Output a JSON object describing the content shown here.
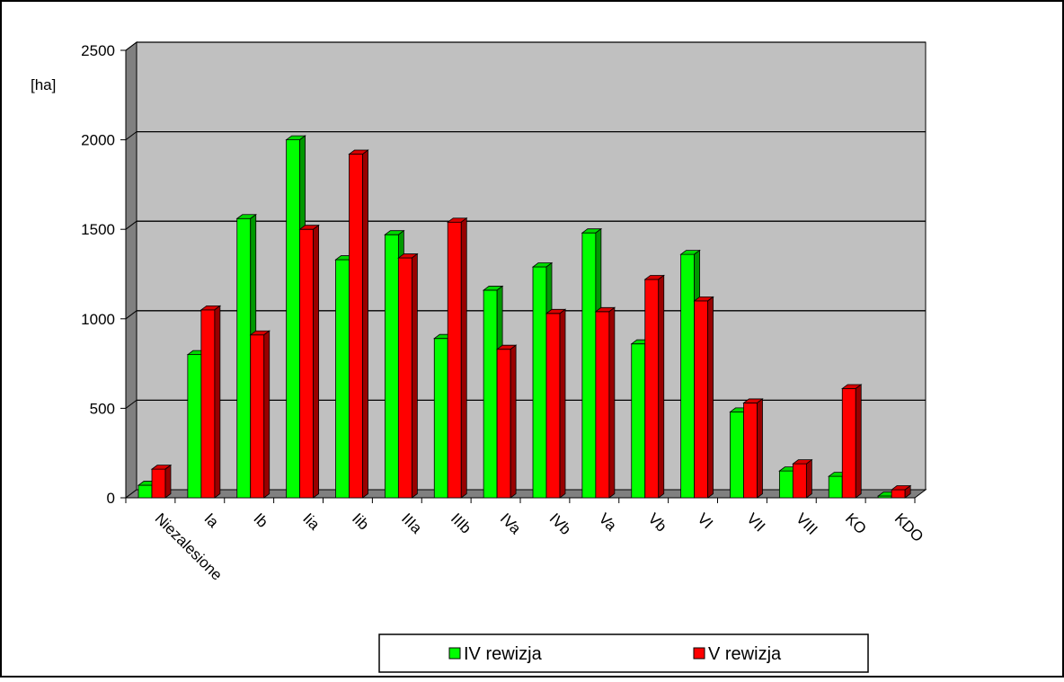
{
  "chart_data": {
    "type": "bar",
    "title": "",
    "xlabel": "",
    "ylabel": "[ha]",
    "ylim": [
      0,
      2500
    ],
    "yticks": [
      0,
      500,
      1000,
      1500,
      2000,
      2500
    ],
    "grid": true,
    "legend_position": "bottom",
    "categories": [
      "Niezalesione",
      "Ia",
      "Ib",
      "Iia",
      "Iib",
      "IIIa",
      "IIIb",
      "IVa",
      "IVb",
      "Va",
      "Vb",
      "VI",
      "VII",
      "VIII",
      "KO",
      "KDO"
    ],
    "series": [
      {
        "name": "IV rewizja",
        "color": "#00ff00",
        "values": [
          70,
          800,
          1560,
          2000,
          1330,
          1470,
          890,
          1160,
          1290,
          1480,
          860,
          1360,
          480,
          150,
          120,
          10
        ]
      },
      {
        "name": "V rewizja",
        "color": "#ff0000",
        "values": [
          160,
          1050,
          910,
          1500,
          1920,
          1340,
          1540,
          830,
          1030,
          1040,
          1220,
          1100,
          530,
          190,
          610,
          45
        ]
      }
    ]
  }
}
